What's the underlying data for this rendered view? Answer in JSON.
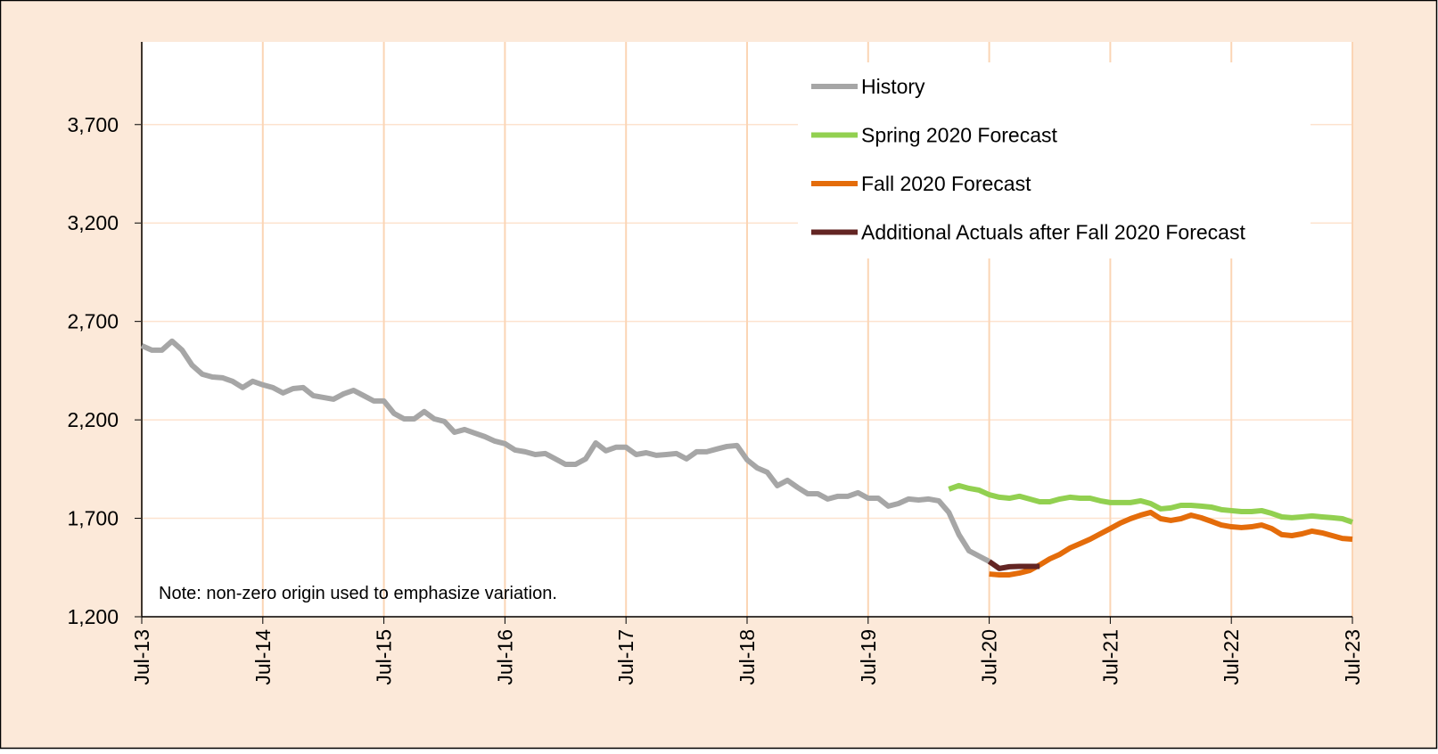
{
  "chart_data": {
    "type": "line",
    "annotation": "Note: non-zero origin used to emphasize variation.",
    "categories": [
      "Jul-13",
      null,
      null,
      null,
      null,
      null,
      null,
      null,
      null,
      null,
      null,
      null,
      "Jul-14",
      null,
      null,
      null,
      null,
      null,
      null,
      null,
      null,
      null,
      null,
      null,
      "Jul-15",
      null,
      null,
      null,
      null,
      null,
      null,
      null,
      null,
      null,
      null,
      null,
      "Jul-16",
      null,
      null,
      null,
      null,
      null,
      null,
      null,
      null,
      null,
      null,
      null,
      "Jul-17",
      null,
      null,
      null,
      null,
      null,
      null,
      null,
      null,
      null,
      null,
      null,
      "Jul-18",
      null,
      null,
      null,
      null,
      null,
      null,
      null,
      null,
      null,
      null,
      null,
      "Jul-19",
      null,
      null,
      null,
      null,
      null,
      null,
      null,
      null,
      null,
      null,
      null,
      "Jul-20",
      null,
      null,
      null,
      null,
      null,
      null,
      null,
      null,
      null,
      null,
      null,
      "Jul-21",
      null,
      null,
      null,
      null,
      null,
      null,
      null,
      null,
      null,
      null,
      null,
      "Jul-22",
      null,
      null,
      null,
      null,
      null,
      null,
      null,
      null,
      null,
      null,
      null,
      "Jul-23"
    ],
    "series": [
      {
        "name": "History",
        "color": "#a6a6a6",
        "values": [
          2577,
          2554,
          2554,
          2600,
          2554,
          2477,
          2432,
          2418,
          2414,
          2396,
          2364,
          2396,
          2378,
          2364,
          2337,
          2359,
          2364,
          2323,
          2314,
          2305,
          2332,
          2350,
          2323,
          2296,
          2296,
          2233,
          2205,
          2205,
          2242,
          2205,
          2192,
          2137,
          2151,
          2133,
          2115,
          2092,
          2079,
          2047,
          2038,
          2024,
          2029,
          2002,
          1974,
          1974,
          2002,
          2083,
          2043,
          2061,
          2061,
          2024,
          2033,
          2020,
          2024,
          2029,
          2002,
          2038,
          2038,
          2052,
          2065,
          2070,
          1997,
          1956,
          1934,
          1866,
          1893,
          1857,
          1825,
          1825,
          1798,
          1812,
          1812,
          1830,
          1802,
          1802,
          1762,
          1775,
          1798,
          1793,
          1798,
          1789,
          1730,
          1617,
          1535,
          1508,
          1481,
          null,
          null,
          null,
          null,
          null,
          null,
          null,
          null,
          null,
          null,
          null,
          null,
          null,
          null,
          null,
          null,
          null,
          null,
          null,
          null,
          null,
          null,
          null,
          null,
          null,
          null,
          null,
          null,
          null,
          null,
          null,
          null,
          null,
          null,
          null,
          null
        ]
      },
      {
        "name": "Spring 2020 Forecast",
        "color": "#92d050",
        "values": [
          null,
          null,
          null,
          null,
          null,
          null,
          null,
          null,
          null,
          null,
          null,
          null,
          null,
          null,
          null,
          null,
          null,
          null,
          null,
          null,
          null,
          null,
          null,
          null,
          null,
          null,
          null,
          null,
          null,
          null,
          null,
          null,
          null,
          null,
          null,
          null,
          null,
          null,
          null,
          null,
          null,
          null,
          null,
          null,
          null,
          null,
          null,
          null,
          null,
          null,
          null,
          null,
          null,
          null,
          null,
          null,
          null,
          null,
          null,
          null,
          null,
          null,
          null,
          null,
          null,
          null,
          null,
          null,
          null,
          null,
          null,
          null,
          null,
          null,
          null,
          null,
          null,
          null,
          null,
          null,
          1848,
          1866,
          1852,
          1843,
          1820,
          1807,
          1802,
          1812,
          1798,
          1784,
          1784,
          1798,
          1807,
          1802,
          1802,
          1789,
          1780,
          1780,
          1780,
          1789,
          1775,
          1748,
          1753,
          1766,
          1766,
          1762,
          1757,
          1744,
          1739,
          1734,
          1734,
          1739,
          1725,
          1707,
          1703,
          1707,
          1712,
          1707,
          1703,
          1698,
          1680
        ]
      },
      {
        "name": "Fall 2020 Forecast",
        "color": "#e46c0a",
        "values": [
          null,
          null,
          null,
          null,
          null,
          null,
          null,
          null,
          null,
          null,
          null,
          null,
          null,
          null,
          null,
          null,
          null,
          null,
          null,
          null,
          null,
          null,
          null,
          null,
          null,
          null,
          null,
          null,
          null,
          null,
          null,
          null,
          null,
          null,
          null,
          null,
          null,
          null,
          null,
          null,
          null,
          null,
          null,
          null,
          null,
          null,
          null,
          null,
          null,
          null,
          null,
          null,
          null,
          null,
          null,
          null,
          null,
          null,
          null,
          null,
          null,
          null,
          null,
          null,
          null,
          null,
          null,
          null,
          null,
          null,
          null,
          null,
          null,
          null,
          null,
          null,
          null,
          null,
          null,
          null,
          null,
          null,
          null,
          null,
          1417,
          1413,
          1413,
          1422,
          1435,
          1463,
          1494,
          1517,
          1549,
          1571,
          1594,
          1621,
          1648,
          1676,
          1698,
          1716,
          1730,
          1698,
          1689,
          1698,
          1716,
          1703,
          1685,
          1666,
          1657,
          1653,
          1657,
          1666,
          1648,
          1617,
          1612,
          1621,
          1635,
          1626,
          1612,
          1598,
          1594
        ]
      },
      {
        "name": "Additional Actuals after Fall 2020 Forecast",
        "color": "#632523",
        "values": [
          null,
          null,
          null,
          null,
          null,
          null,
          null,
          null,
          null,
          null,
          null,
          null,
          null,
          null,
          null,
          null,
          null,
          null,
          null,
          null,
          null,
          null,
          null,
          null,
          null,
          null,
          null,
          null,
          null,
          null,
          null,
          null,
          null,
          null,
          null,
          null,
          null,
          null,
          null,
          null,
          null,
          null,
          null,
          null,
          null,
          null,
          null,
          null,
          null,
          null,
          null,
          null,
          null,
          null,
          null,
          null,
          null,
          null,
          null,
          null,
          null,
          null,
          null,
          null,
          null,
          null,
          null,
          null,
          null,
          null,
          null,
          null,
          null,
          null,
          null,
          null,
          null,
          null,
          null,
          null,
          null,
          null,
          null,
          null,
          1481,
          1445,
          1454,
          1456,
          1456,
          1456,
          null,
          null,
          null,
          null,
          null,
          null,
          null,
          null,
          null,
          null,
          null,
          null,
          null,
          null,
          null,
          null,
          null,
          null,
          null,
          null,
          null,
          null,
          null,
          null,
          null,
          null,
          null,
          null,
          null,
          null,
          null
        ]
      }
    ],
    "ylim": [
      1200,
      4120
    ],
    "yticks": [
      {
        "value": 1200,
        "label": "1,200"
      },
      {
        "value": 1700,
        "label": "1,700"
      },
      {
        "value": 2200,
        "label": "2,200"
      },
      {
        "value": 2700,
        "label": "2,700"
      },
      {
        "value": 3200,
        "label": "3,200"
      },
      {
        "value": 3700,
        "label": "3,700"
      }
    ],
    "grid": true,
    "legend": "top-right"
  }
}
